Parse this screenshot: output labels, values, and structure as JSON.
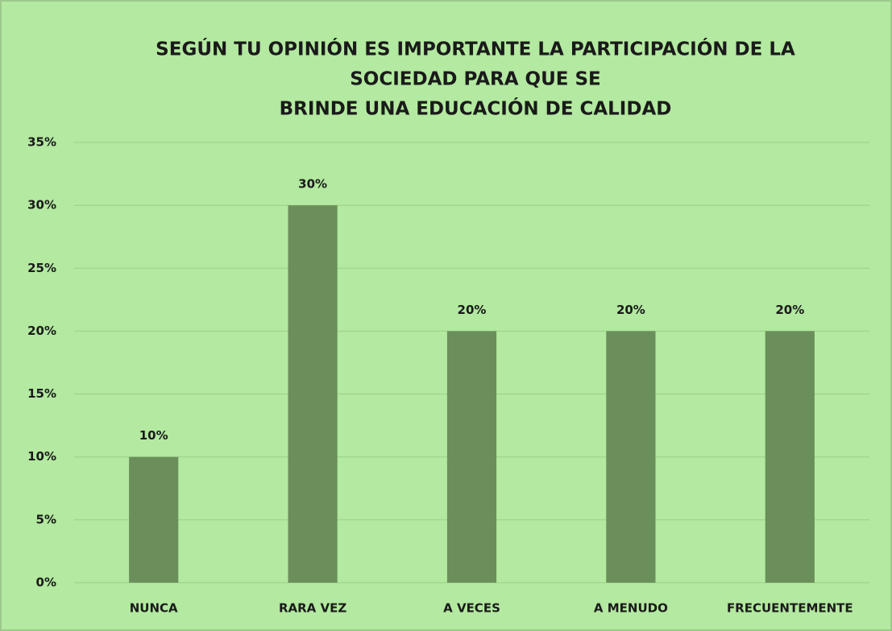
{
  "chart_data": {
    "type": "bar",
    "title": [
      "SEGÚN TU OPINIÓN ES IMPORTANTE LA PARTICIPACIÓN DE LA",
      "SOCIEDAD PARA QUE SE",
      "BRINDE UNA EDUCACIÓN DE CALIDAD"
    ],
    "categories": [
      "NUNCA",
      "RARA VEZ",
      "A VECES",
      "A MENUDO",
      "FRECUENTEMENTE"
    ],
    "values": [
      10,
      30,
      20,
      20,
      20
    ],
    "value_labels": [
      "10%",
      "30%",
      "20%",
      "20%",
      "20%"
    ],
    "color": "#6b8f5b",
    "ylim": [
      0,
      35
    ],
    "yticks": [
      {
        "value": 0,
        "label": "0%"
      },
      {
        "value": 5,
        "label": "5%"
      },
      {
        "value": 10,
        "label": "10%"
      },
      {
        "value": 15,
        "label": "15%"
      },
      {
        "value": 20,
        "label": "20%"
      },
      {
        "value": 25,
        "label": "25%"
      },
      {
        "value": 30,
        "label": "30%"
      },
      {
        "value": 35,
        "label": "35%"
      }
    ],
    "grid": true
  }
}
